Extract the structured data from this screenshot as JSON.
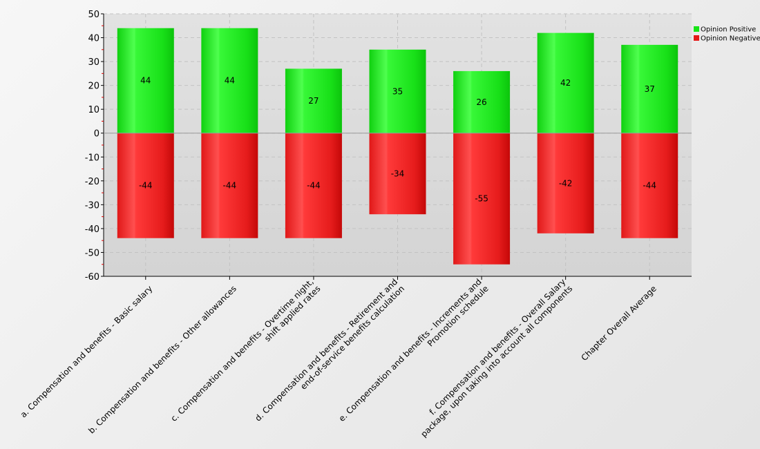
{
  "chart_data": {
    "type": "bar",
    "stacked": true,
    "title": "",
    "xlabel": "",
    "ylabel": "",
    "ylim": [
      -60,
      50
    ],
    "yticks": [
      50,
      40,
      30,
      20,
      10,
      0,
      -10,
      -20,
      -30,
      -40,
      -50,
      -60
    ],
    "grid": true,
    "legend_position": "top-right",
    "categories": [
      [
        "a. Compensation and benefits - Basic salary"
      ],
      [
        "b. Compensation and benefits - Other allowances"
      ],
      [
        "c. Compensation and benefits - Overtime  night,",
        "shift applied rates"
      ],
      [
        "d. Compensation and benefits - Retirement and",
        "end-of-service benefits calculation"
      ],
      [
        "e. Compensation and benefits - Increments and",
        "Promotion schedule"
      ],
      [
        "f. Compensation and benefits - Overall Salary",
        "package, upon taking into account all components"
      ],
      [
        "Chapter Overall Average"
      ]
    ],
    "series": [
      {
        "name": "Opinion Positive",
        "color": "#18e418",
        "values": [
          44,
          44,
          27,
          35,
          26,
          42,
          37
        ]
      },
      {
        "name": "Opinion Negative",
        "color": "#e41818",
        "values": [
          -44,
          -44,
          -44,
          -34,
          -55,
          -42,
          -44
        ]
      }
    ]
  }
}
